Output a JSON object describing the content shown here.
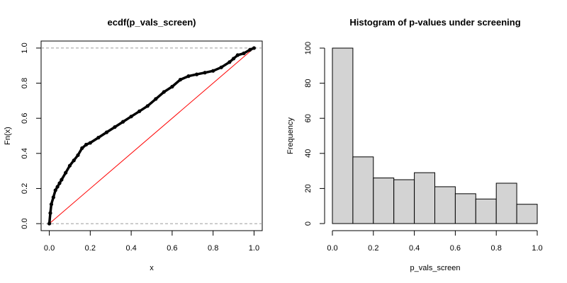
{
  "chart_data": [
    {
      "type": "line",
      "title": "ecdf(p_vals_screen)",
      "xlabel": "x",
      "ylabel": "Fn(x)",
      "xlim": [
        -0.04,
        1.04
      ],
      "ylim": [
        -0.04,
        1.04
      ],
      "x_ticks": [
        0.0,
        0.2,
        0.4,
        0.6,
        0.8,
        1.0
      ],
      "x_tick_labels": [
        "0.0",
        "0.2",
        "0.4",
        "0.6",
        "0.8",
        "1.0"
      ],
      "y_ticks": [
        0.0,
        0.2,
        0.4,
        0.6,
        0.8,
        1.0
      ],
      "y_tick_labels": [
        "0.0",
        "0.2",
        "0.4",
        "0.6",
        "0.8",
        "1.0"
      ],
      "hlines": [
        0,
        1
      ],
      "reference_line": {
        "from": [
          0,
          0
        ],
        "to": [
          1,
          1
        ],
        "color": "#ff0000"
      },
      "series": [
        {
          "name": "ecdf",
          "x": [
            0.0,
            0.005,
            0.01,
            0.02,
            0.03,
            0.04,
            0.05,
            0.06,
            0.08,
            0.1,
            0.12,
            0.14,
            0.16,
            0.18,
            0.2,
            0.24,
            0.28,
            0.32,
            0.36,
            0.4,
            0.44,
            0.48,
            0.52,
            0.56,
            0.6,
            0.64,
            0.68,
            0.72,
            0.76,
            0.8,
            0.84,
            0.88,
            0.9,
            0.92,
            0.95,
            0.98,
            1.0
          ],
          "y": [
            0.0,
            0.06,
            0.11,
            0.15,
            0.19,
            0.21,
            0.23,
            0.25,
            0.29,
            0.33,
            0.36,
            0.39,
            0.43,
            0.45,
            0.46,
            0.49,
            0.52,
            0.55,
            0.58,
            0.61,
            0.64,
            0.67,
            0.71,
            0.75,
            0.78,
            0.82,
            0.84,
            0.85,
            0.86,
            0.87,
            0.89,
            0.92,
            0.94,
            0.96,
            0.97,
            0.99,
            1.0
          ]
        }
      ]
    },
    {
      "type": "bar",
      "title": "Histogram of p-values under screening",
      "xlabel": "p_vals_screen",
      "ylabel": "Frequency",
      "xlim": [
        0,
        1
      ],
      "ylim": [
        0,
        100
      ],
      "bin_edges": [
        0.0,
        0.1,
        0.2,
        0.3,
        0.4,
        0.5,
        0.6,
        0.7,
        0.8,
        0.9,
        1.0
      ],
      "values": [
        100,
        38,
        26,
        25,
        29,
        21,
        17,
        14,
        23,
        11
      ],
      "x_ticks": [
        0.0,
        0.2,
        0.4,
        0.6,
        0.8,
        1.0
      ],
      "x_tick_labels": [
        "0.0",
        "0.2",
        "0.4",
        "0.6",
        "0.8",
        "1.0"
      ],
      "y_ticks": [
        0,
        20,
        40,
        60,
        80,
        100
      ],
      "y_tick_labels": [
        "0",
        "20",
        "40",
        "60",
        "80",
        "100"
      ],
      "bar_color": "#d3d3d3"
    }
  ]
}
